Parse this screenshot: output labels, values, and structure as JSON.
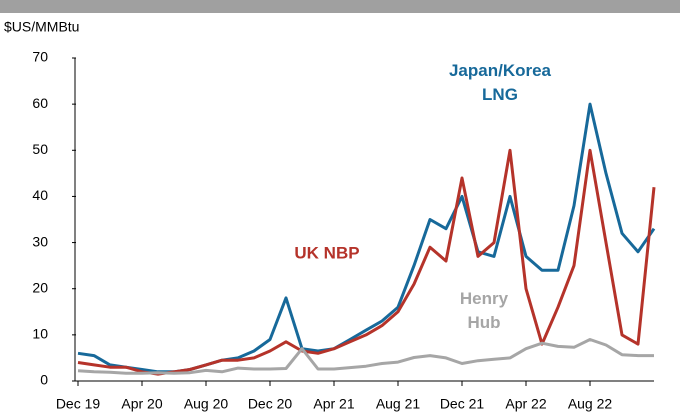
{
  "chart_data": {
    "type": "line",
    "y_label": "$US/MMBtu",
    "categories": [
      "Dec 19",
      null,
      null,
      null,
      "Apr 20",
      null,
      null,
      null,
      "Aug 20",
      null,
      null,
      null,
      "Dec 20",
      null,
      null,
      null,
      "Apr 21",
      null,
      null,
      null,
      "Aug 21",
      null,
      null,
      null,
      "Dec 21",
      null,
      null,
      null,
      "Apr 22",
      null,
      null,
      null,
      "Aug 22",
      null,
      null,
      null,
      null
    ],
    "series": [
      {
        "name": "Japan/Korea LNG",
        "color": "#17699a",
        "values": [
          6,
          5.5,
          3.5,
          3,
          2.5,
          2,
          2,
          2.5,
          3.5,
          4.5,
          5,
          6.5,
          9,
          18,
          7,
          6.5,
          7,
          9,
          11,
          13,
          16,
          25,
          35,
          33,
          40,
          28,
          27,
          40,
          27,
          24,
          24,
          38,
          60,
          45,
          32,
          28,
          33
        ]
      },
      {
        "name": "UK NBP",
        "color": "#b5332a",
        "values": [
          4,
          3.5,
          3,
          3,
          2,
          1.5,
          2,
          2.5,
          3.5,
          4.5,
          4.5,
          5,
          6.5,
          8.5,
          6.5,
          6,
          7,
          8.5,
          10,
          12,
          15,
          21,
          29,
          26,
          44,
          27,
          30,
          50,
          20,
          8,
          16,
          25,
          50,
          30,
          10,
          8,
          42
        ]
      },
      {
        "name": "Henry Hub",
        "color": "#a6a6a6",
        "values": [
          2.2,
          2,
          1.9,
          1.7,
          1.7,
          1.8,
          1.7,
          1.8,
          2.3,
          2,
          2.8,
          2.6,
          2.6,
          2.7,
          7,
          2.6,
          2.6,
          2.9,
          3.2,
          3.8,
          4.1,
          5.1,
          5.5,
          5,
          3.8,
          4.4,
          4.7,
          5,
          7,
          8.2,
          7.5,
          7.3,
          9,
          7.8,
          5.7,
          5.5,
          5.5
        ]
      }
    ],
    "ylim": [
      0,
      70
    ],
    "yticks": [
      0,
      10,
      20,
      30,
      40,
      50,
      60,
      70
    ]
  }
}
